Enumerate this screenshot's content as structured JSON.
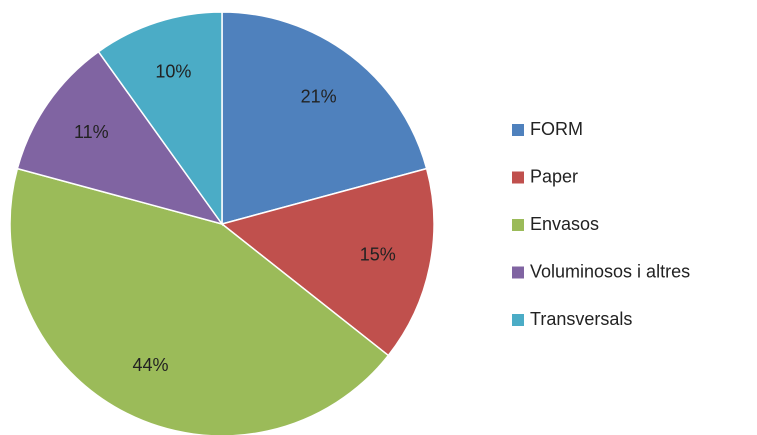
{
  "chart_data": {
    "type": "pie",
    "categories": [
      "FORM",
      "Paper",
      "Envasos",
      "Voluminosos i altres",
      "Transversals"
    ],
    "values": [
      21,
      15,
      44,
      11,
      10
    ],
    "value_labels": [
      "21%",
      "15%",
      "44%",
      "11%",
      "10%"
    ],
    "colors": [
      "#4f81bd",
      "#c0504d",
      "#9bbb59",
      "#8064a2",
      "#4bacc6"
    ],
    "legend": "right"
  }
}
